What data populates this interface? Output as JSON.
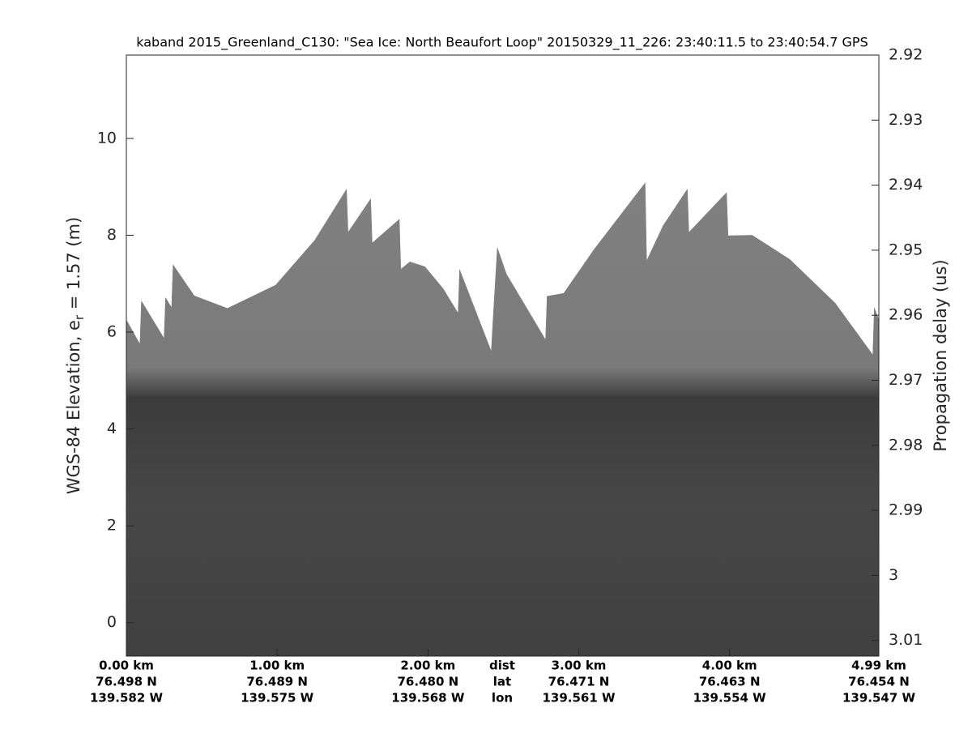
{
  "chart_data": {
    "type": "echogram",
    "title": "kaband 2015_Greenland_C130: \"Sea Ice: North Beaufort Loop\"  20150329_11_226: 23:40:11.5 to 23:40:54.7 GPS",
    "ylabel": "WGS-84 Elevation, e",
    "ylabel_sub": "r",
    "ylabel_tail": " = 1.57 (m)",
    "y2label": "Propagation delay (us)",
    "xlim": [
      0,
      4.99
    ],
    "ylim": [
      -0.69,
      11.72
    ],
    "yticks": [
      0,
      2,
      4,
      6,
      8,
      10
    ],
    "y2lim": [
      3.0124,
      2.92
    ],
    "y2ticks": [
      2.92,
      2.93,
      2.94,
      2.95,
      2.96,
      2.97,
      2.98,
      2.99,
      3,
      3.01
    ],
    "xticks": [
      {
        "value": 0,
        "label": "0.00 km"
      },
      {
        "value": 1,
        "label": "1.00 km"
      },
      {
        "value": 2,
        "label": "2.00 km"
      },
      {
        "value": 3,
        "label": "3.00 km"
      },
      {
        "value": 4,
        "label": "4.00 km"
      },
      {
        "value": 4.99,
        "label": "4.99 km"
      }
    ],
    "xtick_lat": [
      "76.498 N",
      "76.489 N",
      "76.480 N",
      "76.471 N",
      "76.463 N",
      "76.454 N"
    ],
    "xtick_lon": [
      "139.582 W",
      "139.575 W",
      "139.568 W",
      "139.561 W",
      "139.554 W",
      "139.547 W"
    ],
    "row_labels": [
      "dist",
      "lat",
      "lon"
    ],
    "x": [
      0.0,
      0.09,
      0.1,
      0.25,
      0.26,
      0.3,
      0.31,
      0.45,
      0.67,
      0.99,
      1.25,
      1.46,
      1.47,
      1.62,
      1.63,
      1.81,
      1.82,
      1.88,
      1.98,
      2.1,
      2.2,
      2.21,
      2.42,
      2.43,
      2.46,
      2.52,
      2.78,
      2.79,
      2.9,
      3.1,
      3.44,
      3.45,
      3.56,
      3.72,
      3.73,
      3.98,
      3.99,
      4.15,
      4.4,
      4.7,
      4.95,
      4.96,
      4.99
    ],
    "values": [
      6.25,
      5.75,
      6.64,
      5.87,
      6.71,
      6.5,
      7.39,
      6.75,
      6.49,
      6.97,
      7.9,
      8.95,
      8.06,
      8.75,
      7.84,
      8.33,
      7.3,
      7.45,
      7.35,
      6.9,
      6.39,
      7.29,
      5.6,
      6.17,
      7.74,
      7.2,
      5.84,
      6.74,
      6.8,
      7.7,
      9.08,
      7.47,
      8.2,
      8.95,
      8.06,
      8.88,
      7.99,
      8.0,
      7.5,
      6.6,
      5.53,
      6.5,
      6.25
    ],
    "color": "#7c7c7c"
  }
}
